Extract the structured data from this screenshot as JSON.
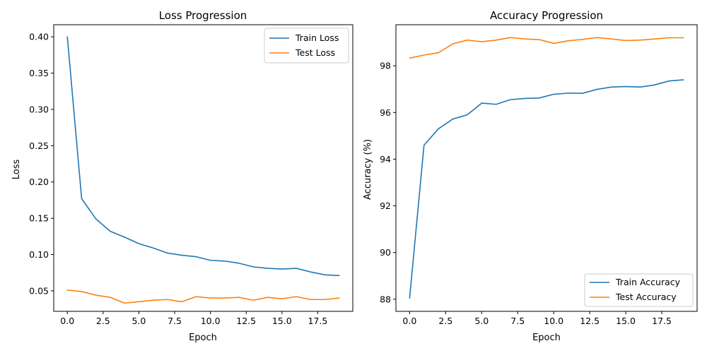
{
  "chart_data": [
    {
      "type": "line",
      "title": "Loss Progression",
      "xlabel": "Epoch",
      "ylabel": "Loss",
      "xlim": [
        -0.95,
        19.95
      ],
      "ylim": [
        0.0217,
        0.4167
      ],
      "xticks": [
        0,
        2.5,
        5,
        7.5,
        10,
        12.5,
        15,
        17.5
      ],
      "xtick_labels": [
        "0.0",
        "2.5",
        "5.0",
        "7.5",
        "10.0",
        "12.5",
        "15.0",
        "17.5"
      ],
      "yticks": [
        0.05,
        0.1,
        0.15,
        0.2,
        0.25,
        0.3,
        0.35,
        0.4
      ],
      "ytick_labels": [
        "0.05",
        "0.10",
        "0.15",
        "0.20",
        "0.25",
        "0.30",
        "0.35",
        "0.40"
      ],
      "legend_position": "top-right",
      "grid": false,
      "x": [
        0,
        1,
        2,
        3,
        4,
        5,
        6,
        7,
        8,
        9,
        10,
        11,
        12,
        13,
        14,
        15,
        16,
        17,
        18,
        19
      ],
      "series": [
        {
          "name": "Train Loss",
          "color": "#1f77b4",
          "values": [
            0.4,
            0.177,
            0.149,
            0.132,
            0.124,
            0.115,
            0.109,
            0.102,
            0.099,
            0.097,
            0.092,
            0.091,
            0.088,
            0.083,
            0.081,
            0.08,
            0.081,
            0.076,
            0.072,
            0.071
          ]
        },
        {
          "name": "Test Loss",
          "color": "#ff7f0e",
          "values": [
            0.051,
            0.049,
            0.044,
            0.041,
            0.033,
            0.035,
            0.037,
            0.038,
            0.035,
            0.042,
            0.04,
            0.04,
            0.041,
            0.037,
            0.041,
            0.039,
            0.042,
            0.038,
            0.038,
            0.04
          ]
        }
      ]
    },
    {
      "type": "line",
      "title": "Accuracy Progression",
      "xlabel": "Epoch",
      "ylabel": "Accuracy (%)",
      "xlim": [
        -0.95,
        19.95
      ],
      "ylim": [
        87.48,
        99.76
      ],
      "xticks": [
        0,
        2.5,
        5,
        7.5,
        10,
        12.5,
        15,
        17.5
      ],
      "xtick_labels": [
        "0.0",
        "2.5",
        "5.0",
        "7.5",
        "10.0",
        "12.5",
        "15.0",
        "17.5"
      ],
      "yticks": [
        88,
        90,
        92,
        94,
        96,
        98
      ],
      "ytick_labels": [
        "88",
        "90",
        "92",
        "94",
        "96",
        "98"
      ],
      "legend_position": "bottom-right",
      "grid": false,
      "x": [
        0,
        1,
        2,
        3,
        4,
        5,
        6,
        7,
        8,
        9,
        10,
        11,
        12,
        13,
        14,
        15,
        16,
        17,
        18,
        19
      ],
      "series": [
        {
          "name": "Train Accuracy",
          "color": "#1f77b4",
          "values": [
            88.05,
            94.6,
            95.3,
            95.72,
            95.9,
            96.4,
            96.35,
            96.55,
            96.6,
            96.62,
            96.78,
            96.83,
            96.82,
            96.99,
            97.09,
            97.11,
            97.09,
            97.18,
            97.35,
            97.4
          ]
        },
        {
          "name": "Test Accuracy",
          "color": "#ff7f0e",
          "values": [
            98.33,
            98.46,
            98.56,
            98.94,
            99.1,
            99.03,
            99.1,
            99.21,
            99.15,
            99.12,
            98.96,
            99.07,
            99.13,
            99.21,
            99.15,
            99.08,
            99.1,
            99.15,
            99.2,
            99.2
          ]
        }
      ]
    }
  ]
}
